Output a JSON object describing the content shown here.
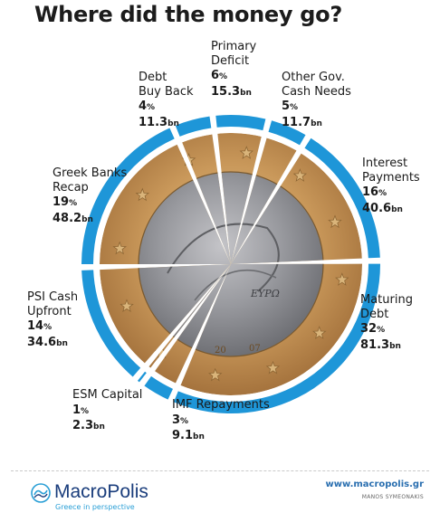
{
  "title": "Where did the money go?",
  "chart_data": {
    "type": "pie",
    "unit": "bn",
    "slices": [
      {
        "name": "Primary Deficit",
        "name_lines": [
          "Primary",
          "Deficit"
        ],
        "pct": 6,
        "value": 15.3
      },
      {
        "name": "Other Gov. Cash Needs",
        "name_lines": [
          "Other Gov.",
          "Cash Needs"
        ],
        "pct": 5,
        "value": 11.7
      },
      {
        "name": "Interest Payments",
        "name_lines": [
          "Interest",
          "Payments"
        ],
        "pct": 16,
        "value": 40.6
      },
      {
        "name": "Maturing Debt",
        "name_lines": [
          "Maturing",
          "Debt"
        ],
        "pct": 32,
        "value": 81.3
      },
      {
        "name": "IMF Repayments",
        "name_lines": [
          "IMF Repayments"
        ],
        "pct": 3,
        "value": 9.1
      },
      {
        "name": "ESM Capital",
        "name_lines": [
          "ESM Capital"
        ],
        "pct": 1,
        "value": 2.3
      },
      {
        "name": "PSI Cash Upfront",
        "name_lines": [
          "PSI Cash",
          "Upfront"
        ],
        "pct": 14,
        "value": 34.6
      },
      {
        "name": "Greek Banks Recap",
        "name_lines": [
          "Greek Banks",
          "Recap"
        ],
        "pct": 19,
        "value": 48.2
      },
      {
        "name": "Debt Buy Back",
        "name_lines": [
          "Debt",
          "Buy Back"
        ],
        "pct": 4,
        "value": 11.3
      }
    ],
    "pct_unit": "%",
    "value_unit": "bn",
    "coin_text": [
      "ΕΥΡΩ",
      "20",
      "07"
    ]
  },
  "colors": {
    "ring": "#1e96d8",
    "title": "#1c1c1c",
    "brand": "#1a3d7c",
    "brand_accent": "#2a9fd6"
  },
  "footer": {
    "brand_name": "MacroPolis",
    "brand_tagline": "Greece in perspective",
    "brand_icon": "macropolis-logo-icon",
    "url": "www.macropolis.gr",
    "credit": "MANOS SYMEONAKIS"
  }
}
